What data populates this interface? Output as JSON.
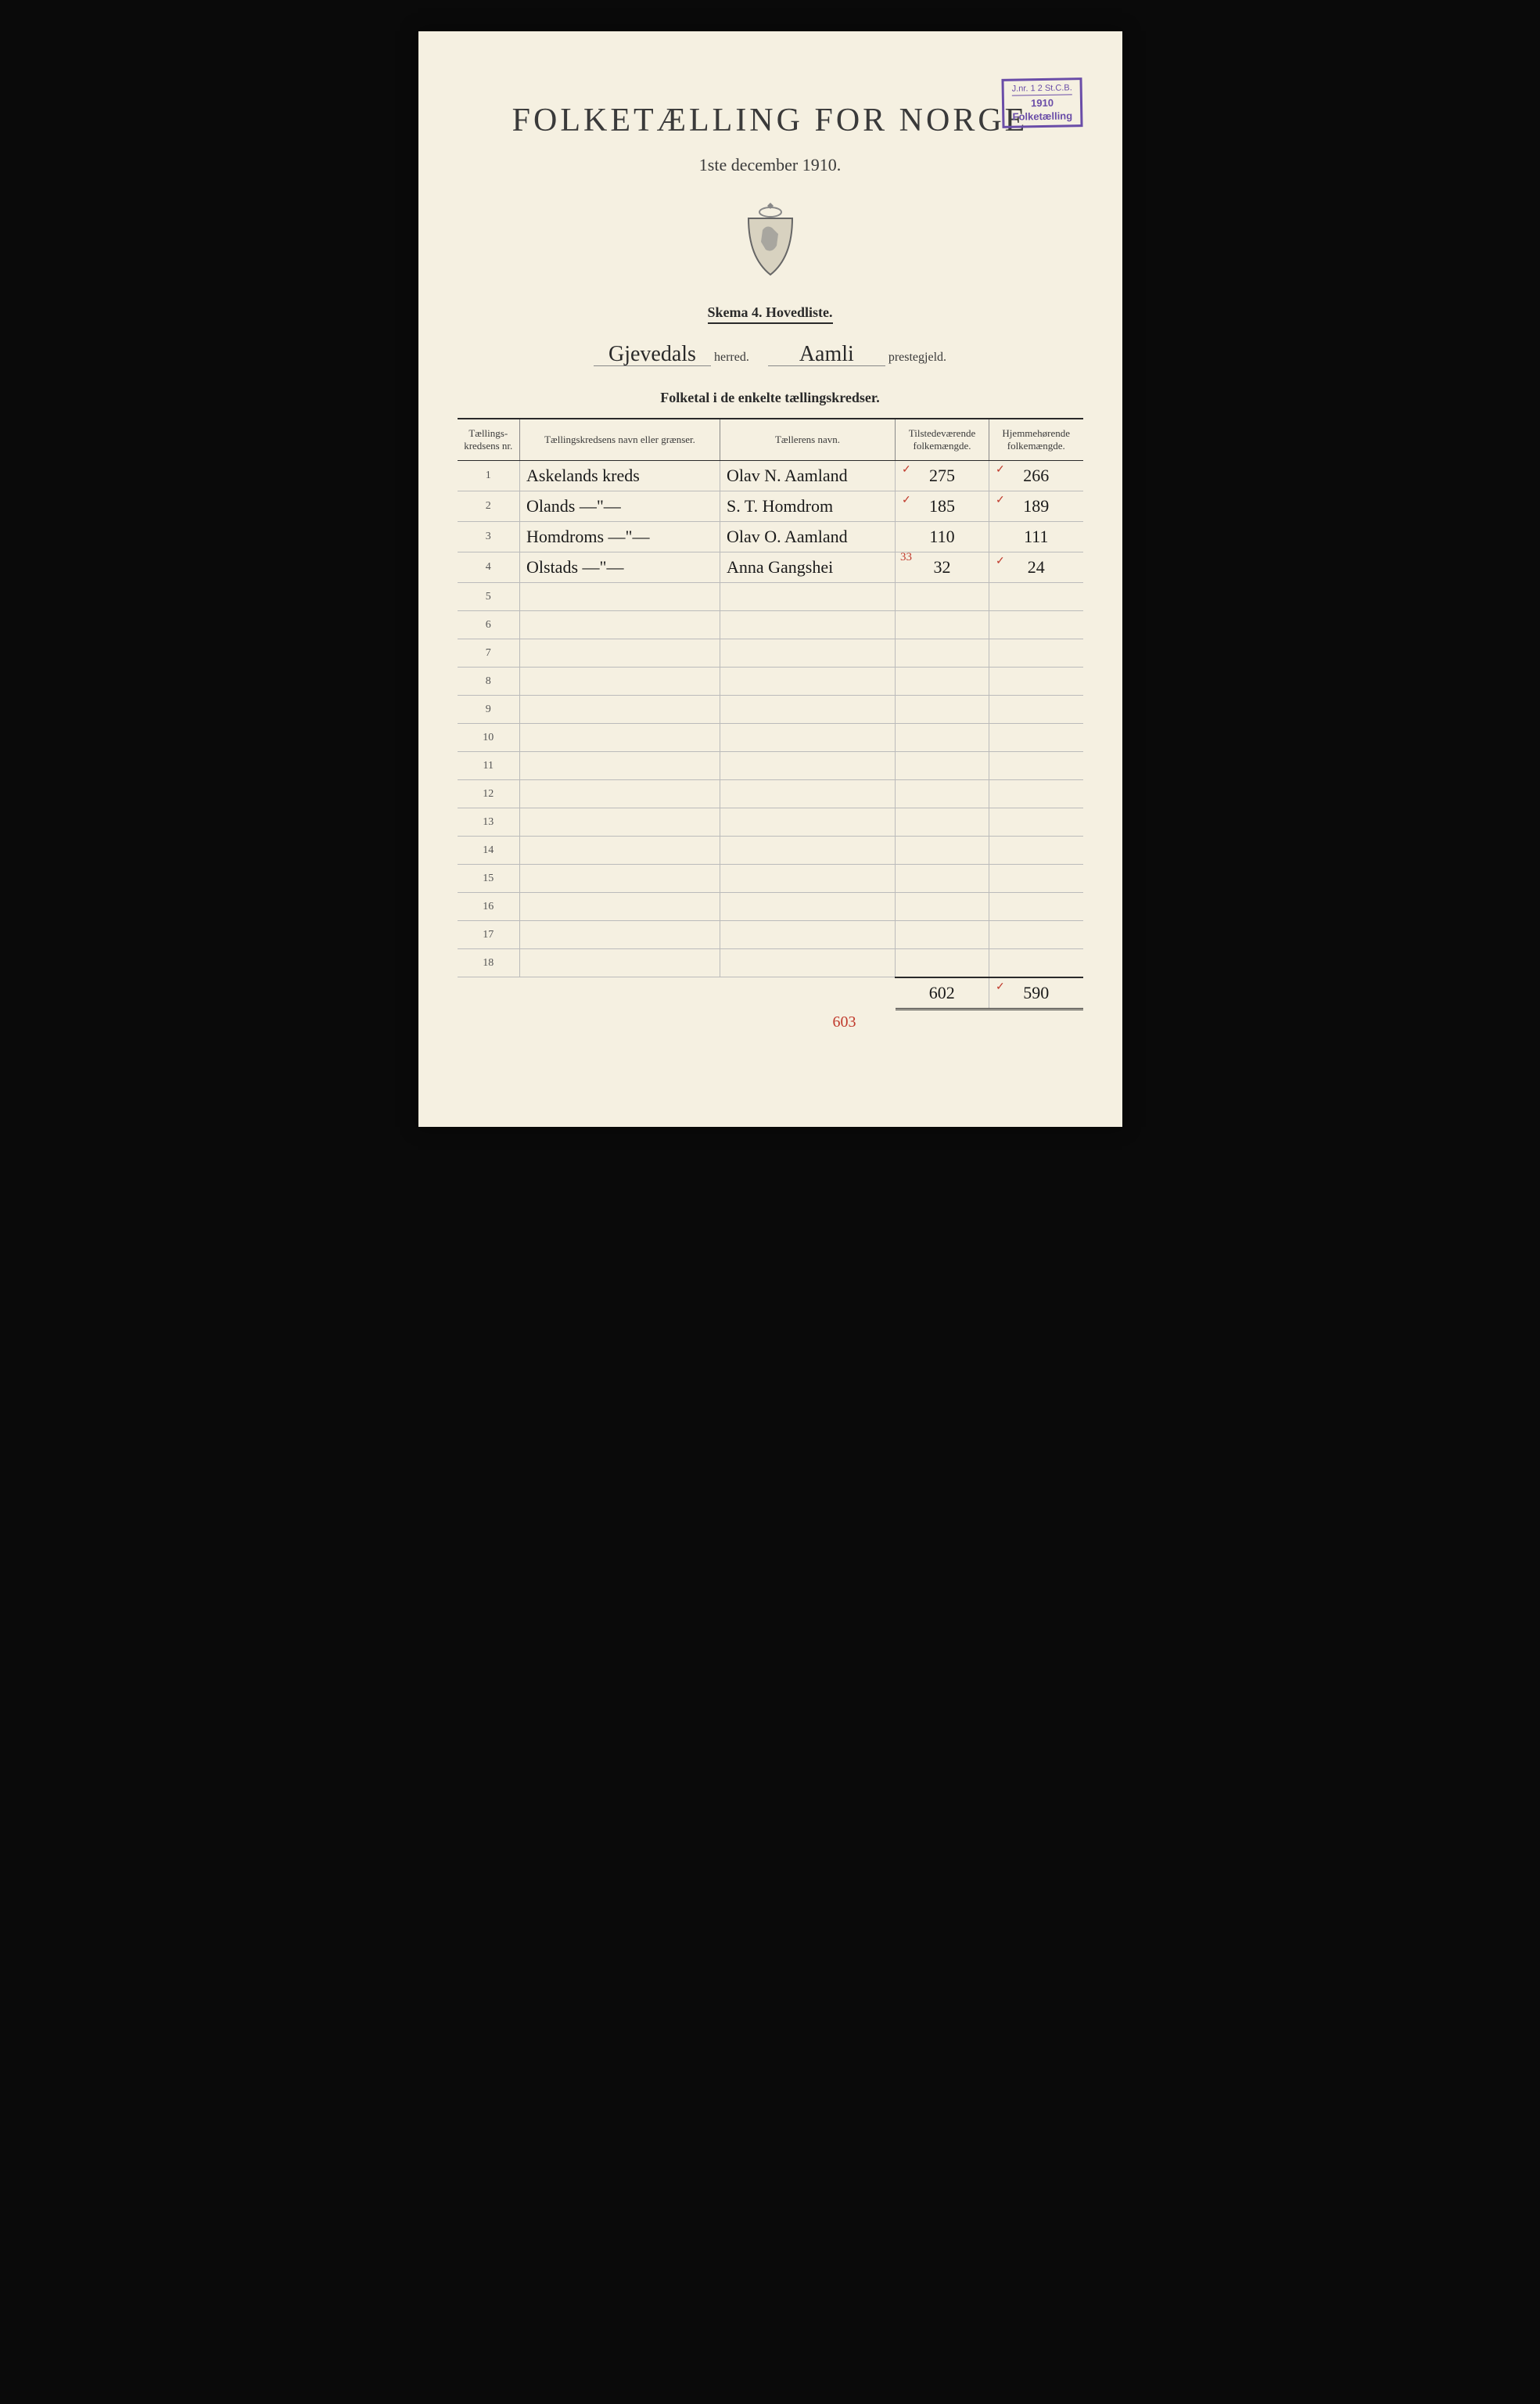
{
  "stamp": {
    "top_left": "J.nr. 1",
    "top_right": "St.C.B.",
    "top_mid": "2",
    "year": "1910",
    "label": "Folketælling"
  },
  "title": "FOLKETÆLLING FOR NORGE",
  "date_line": "1ste december 1910.",
  "skema": "Skema 4.   Hovedliste.",
  "herred_value": "Gjevedals",
  "herred_label": "herred.",
  "prestegjeld_value": "Aamli",
  "prestegjeld_label": "prestegjeld.",
  "section_title": "Folketal i de enkelte tællingskredser.",
  "columns": {
    "nr": "Tællings-\nkredsens nr.",
    "name": "Tællingskredsens navn eller grænser.",
    "counter": "Tællerens navn.",
    "present": "Tilstedeværende\nfolkemængde.",
    "resident": "Hjemmehørende\nfolkemængde."
  },
  "rows": [
    {
      "nr": "1",
      "name": "Askelands kreds",
      "counter": "Olav N. Aamland",
      "present": "275",
      "resident": "266",
      "present_tick": true,
      "resident_tick": true
    },
    {
      "nr": "2",
      "name": "Olands  —\"—",
      "counter": "S. T. Homdrom",
      "present": "185",
      "resident": "189",
      "present_tick": true,
      "resident_tick": true
    },
    {
      "nr": "3",
      "name": "Homdroms  —\"—",
      "counter": "Olav O. Aamland",
      "present": "110",
      "resident": "111",
      "present_tick": false,
      "resident_tick": false
    },
    {
      "nr": "4",
      "name": "Olstads  —\"—",
      "counter": "Anna Gangshei",
      "present": "32",
      "resident": "24",
      "present_tick": false,
      "resident_tick": true,
      "present_correction": "33"
    }
  ],
  "empty_rows": [
    "5",
    "6",
    "7",
    "8",
    "9",
    "10",
    "11",
    "12",
    "13",
    "14",
    "15",
    "16",
    "17",
    "18"
  ],
  "totals": {
    "present": "602",
    "resident": "590",
    "present_red": "603",
    "resident_tick": true
  },
  "crest_alt": "Norwegian coat of arms"
}
